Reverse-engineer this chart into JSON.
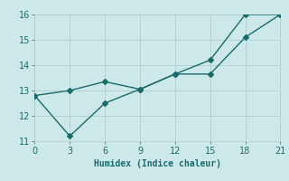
{
  "x": [
    0,
    3,
    6,
    9,
    12,
    15,
    18,
    21
  ],
  "line1": [
    12.8,
    13.0,
    13.35,
    13.05,
    13.65,
    13.65,
    15.1,
    16.0
  ],
  "line2": [
    12.8,
    11.2,
    12.5,
    13.05,
    13.65,
    14.2,
    16.0,
    16.0
  ],
  "line_color": "#1a6b6b",
  "bg_color": "#cde8e8",
  "plot_bg_color": "#cde8e8",
  "grid_color": "#aacccc",
  "xlabel": "Humidex (Indice chaleur)",
  "xlim": [
    0,
    21
  ],
  "ylim": [
    11,
    16
  ],
  "xticks": [
    0,
    3,
    6,
    9,
    12,
    15,
    18,
    21
  ],
  "yticks": [
    11,
    12,
    13,
    14,
    15,
    16
  ],
  "marker": "D",
  "marker_size": 3,
  "linewidth": 1.0
}
